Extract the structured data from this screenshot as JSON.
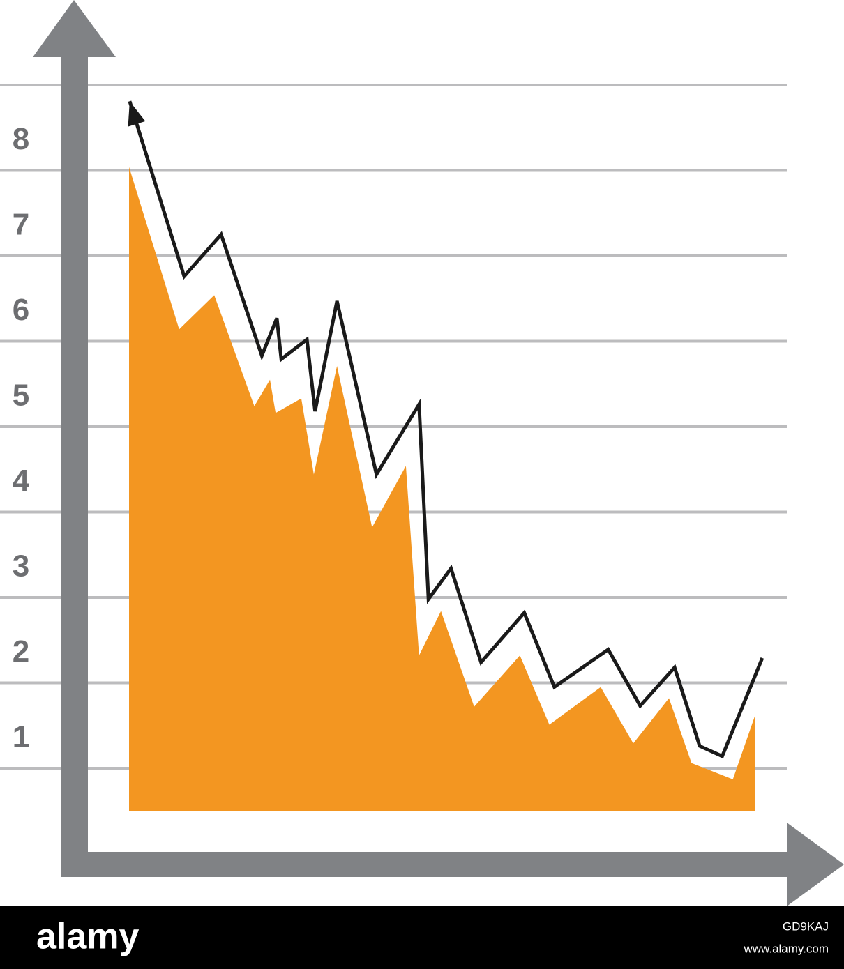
{
  "chart_data": {
    "type": "area",
    "ylim": [
      -0.48,
      8.5
    ],
    "yticks": [
      1,
      2,
      3,
      4,
      5,
      6,
      7,
      8
    ],
    "ygrid": [
      0.5,
      1.5,
      2.5,
      3.5,
      4.5,
      5.5,
      6.5,
      7.5,
      8.5
    ],
    "xlim": [
      0,
      100
    ],
    "axis_color": "#808285",
    "grid_color": "#bcbcbe",
    "series": [
      {
        "color": "#f39621",
        "fill": true,
        "x": [
          0,
          8.0,
          13.6,
          20.0,
          22.5,
          23.4,
          27.5,
          29.5,
          33.2,
          38.8,
          44.2,
          46.3,
          49.8,
          55.1,
          62.4,
          67.1,
          75.3,
          80.5,
          86.2,
          89.8,
          96.4,
          100
        ],
        "values": [
          7.54,
          5.64,
          6.04,
          4.74,
          5.05,
          4.66,
          4.83,
          3.94,
          5.21,
          3.32,
          4.04,
          1.82,
          2.34,
          1.22,
          1.82,
          1.01,
          1.45,
          0.79,
          1.32,
          0.56,
          0.37,
          1.13
        ]
      },
      {
        "color": "#1a1a1a",
        "fill": false,
        "arrow": true,
        "x": [
          0.1,
          8.8,
          14.7,
          21.2,
          23.6,
          24.3,
          28.4,
          29.7,
          33.2,
          39.5,
          46.3,
          47.8,
          51.4,
          56.2,
          63.1,
          67.9,
          76.5,
          81.6,
          87.1,
          91.1,
          94.7,
          101.1
        ],
        "values": [
          8.31,
          6.26,
          6.75,
          5.33,
          5.77,
          5.29,
          5.52,
          4.68,
          5.97,
          3.94,
          4.76,
          2.48,
          2.84,
          1.74,
          2.32,
          1.45,
          1.89,
          1.23,
          1.68,
          0.76,
          0.64,
          1.79
        ]
      }
    ]
  },
  "watermark": {
    "brand": "alamy",
    "id": "GD9KAJ",
    "url": "www.alamy.com"
  }
}
